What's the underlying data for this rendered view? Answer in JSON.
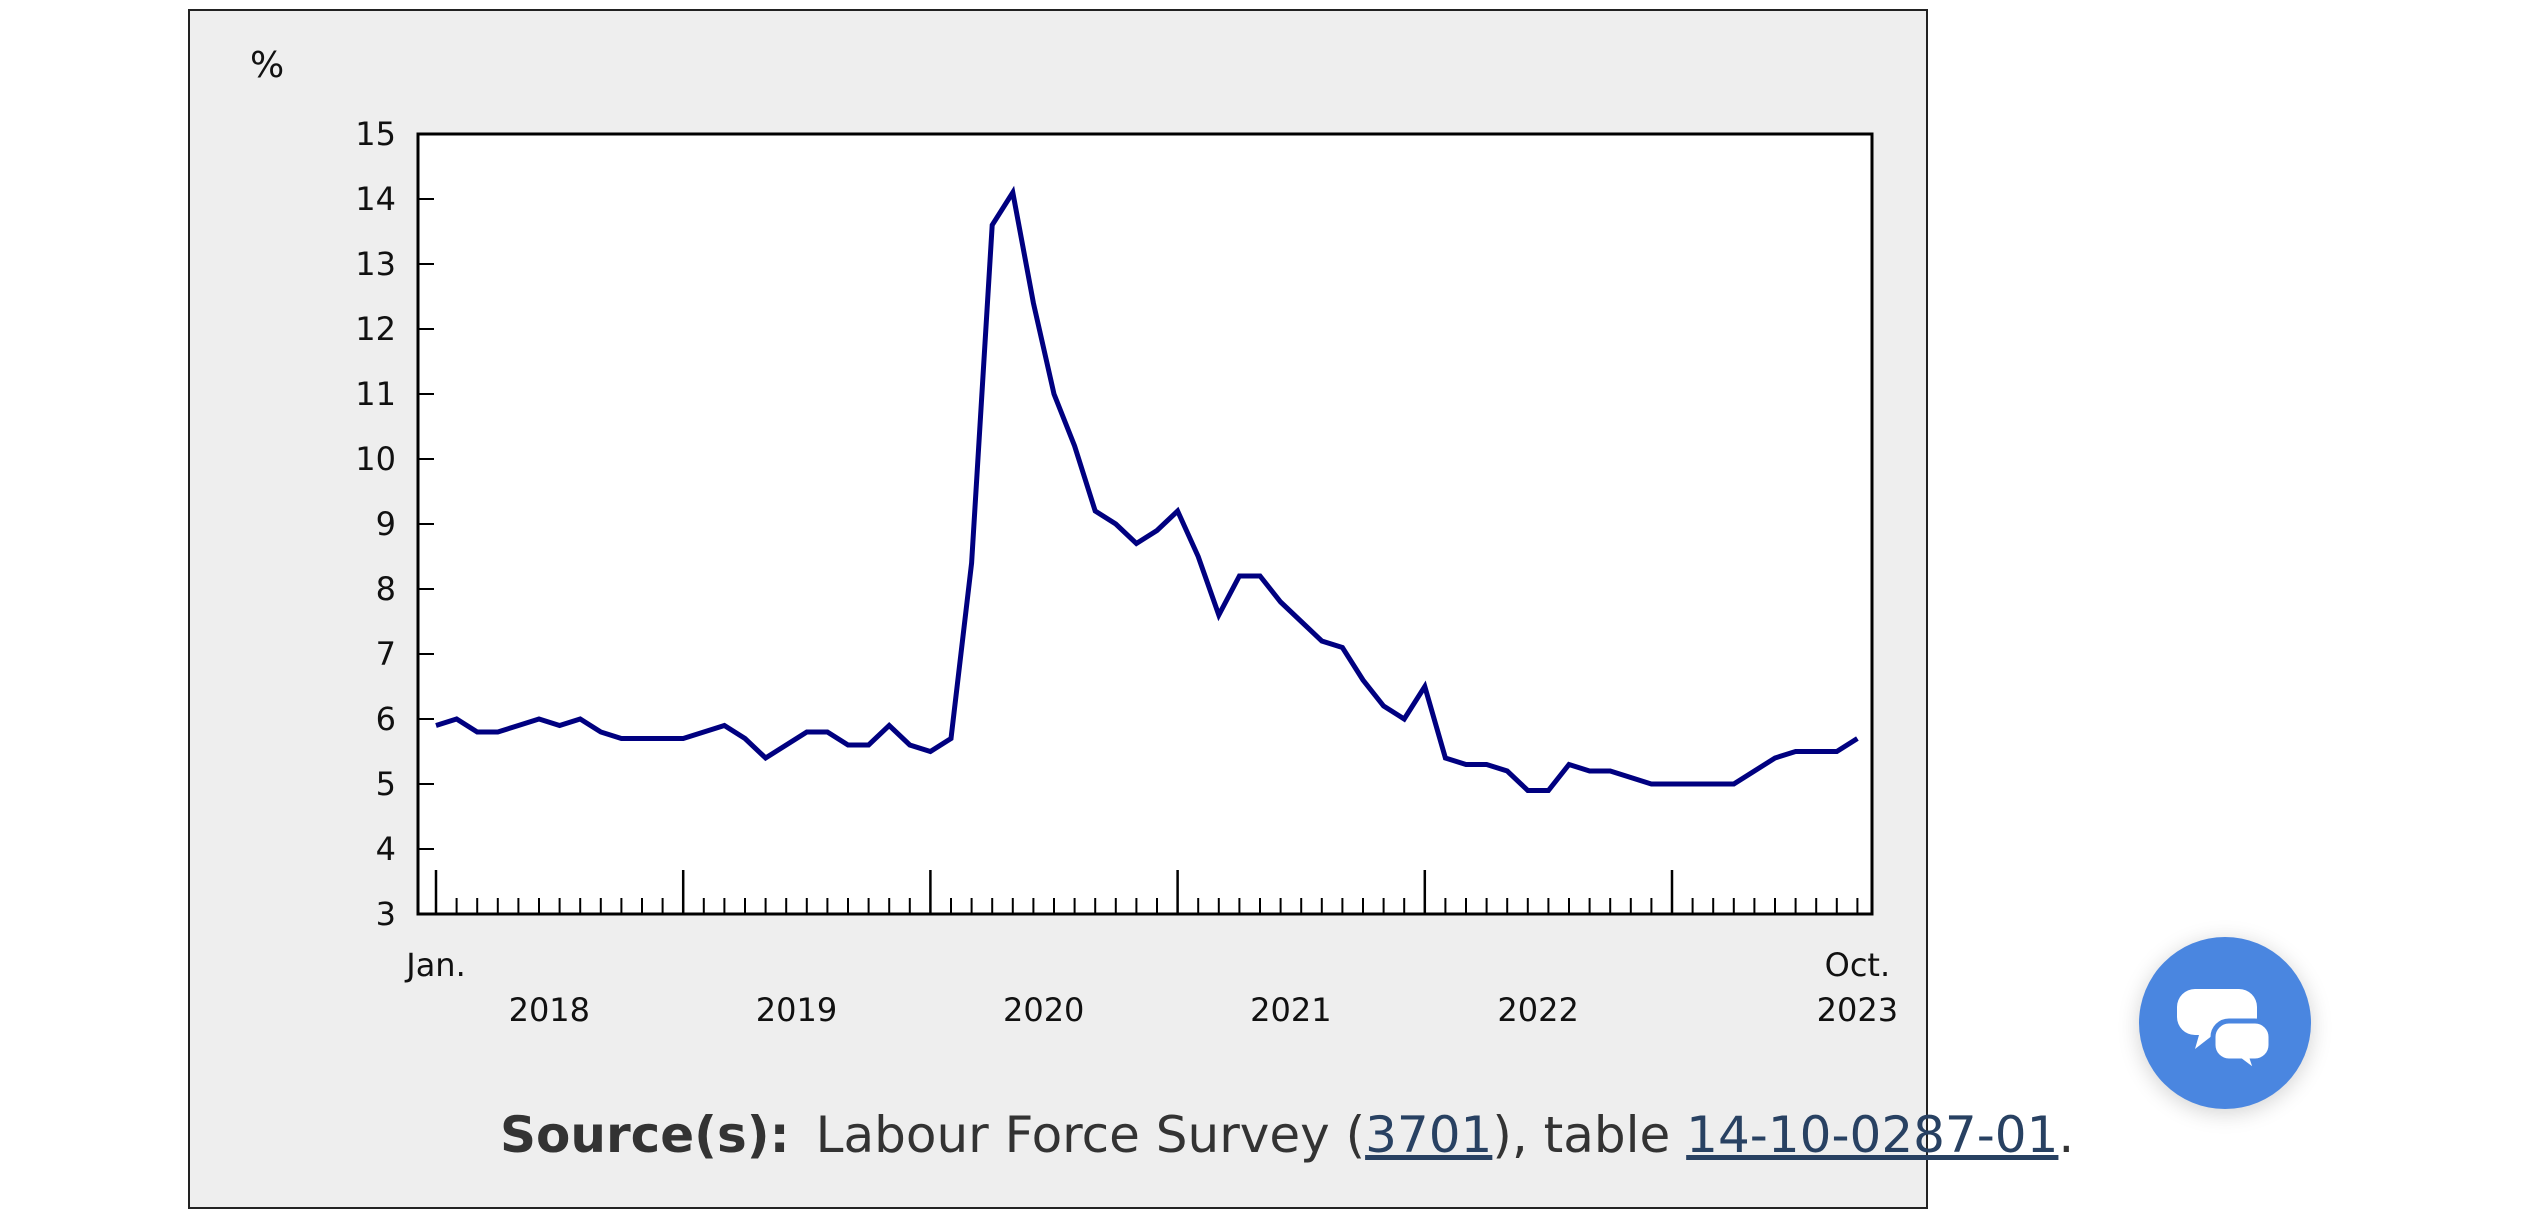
{
  "chart_data": {
    "type": "line",
    "unit_label": "%",
    "ylim": [
      3,
      15
    ],
    "y_ticks": [
      3,
      4,
      5,
      6,
      7,
      8,
      9,
      10,
      11,
      12,
      13,
      14,
      15
    ],
    "x_start_label": "Jan.",
    "x_end_label": "Oct.",
    "year_labels": [
      "2018",
      "2019",
      "2020",
      "2021",
      "2022",
      "2023"
    ],
    "series": [
      {
        "color": "#000080",
        "points": [
          {
            "x": "2018-01",
            "y": 5.9
          },
          {
            "x": "2018-02",
            "y": 6.0
          },
          {
            "x": "2018-03",
            "y": 5.8
          },
          {
            "x": "2018-04",
            "y": 5.8
          },
          {
            "x": "2018-05",
            "y": 5.9
          },
          {
            "x": "2018-06",
            "y": 6.0
          },
          {
            "x": "2018-07",
            "y": 5.9
          },
          {
            "x": "2018-08",
            "y": 6.0
          },
          {
            "x": "2018-09",
            "y": 5.8
          },
          {
            "x": "2018-10",
            "y": 5.7
          },
          {
            "x": "2018-11",
            "y": 5.7
          },
          {
            "x": "2018-12",
            "y": 5.7
          },
          {
            "x": "2019-01",
            "y": 5.7
          },
          {
            "x": "2019-02",
            "y": 5.8
          },
          {
            "x": "2019-03",
            "y": 5.9
          },
          {
            "x": "2019-04",
            "y": 5.7
          },
          {
            "x": "2019-05",
            "y": 5.4
          },
          {
            "x": "2019-06",
            "y": 5.6
          },
          {
            "x": "2019-07",
            "y": 5.8
          },
          {
            "x": "2019-08",
            "y": 5.8
          },
          {
            "x": "2019-09",
            "y": 5.6
          },
          {
            "x": "2019-10",
            "y": 5.6
          },
          {
            "x": "2019-11",
            "y": 5.9
          },
          {
            "x": "2019-12",
            "y": 5.6
          },
          {
            "x": "2020-01",
            "y": 5.5
          },
          {
            "x": "2020-02",
            "y": 5.7
          },
          {
            "x": "2020-03",
            "y": 8.4
          },
          {
            "x": "2020-04",
            "y": 13.6
          },
          {
            "x": "2020-05",
            "y": 14.1
          },
          {
            "x": "2020-06",
            "y": 12.4
          },
          {
            "x": "2020-07",
            "y": 11.0
          },
          {
            "x": "2020-08",
            "y": 10.2
          },
          {
            "x": "2020-09",
            "y": 9.2
          },
          {
            "x": "2020-10",
            "y": 9.0
          },
          {
            "x": "2020-11",
            "y": 8.7
          },
          {
            "x": "2020-12",
            "y": 8.9
          },
          {
            "x": "2021-01",
            "y": 9.2
          },
          {
            "x": "2021-02",
            "y": 8.5
          },
          {
            "x": "2021-03",
            "y": 7.6
          },
          {
            "x": "2021-04",
            "y": 8.2
          },
          {
            "x": "2021-05",
            "y": 8.2
          },
          {
            "x": "2021-06",
            "y": 7.8
          },
          {
            "x": "2021-07",
            "y": 7.5
          },
          {
            "x": "2021-08",
            "y": 7.2
          },
          {
            "x": "2021-09",
            "y": 7.1
          },
          {
            "x": "2021-10",
            "y": 6.6
          },
          {
            "x": "2021-11",
            "y": 6.2
          },
          {
            "x": "2021-12",
            "y": 6.0
          },
          {
            "x": "2022-01",
            "y": 6.5
          },
          {
            "x": "2022-02",
            "y": 5.4
          },
          {
            "x": "2022-03",
            "y": 5.3
          },
          {
            "x": "2022-04",
            "y": 5.3
          },
          {
            "x": "2022-05",
            "y": 5.2
          },
          {
            "x": "2022-06",
            "y": 4.9
          },
          {
            "x": "2022-07",
            "y": 4.9
          },
          {
            "x": "2022-08",
            "y": 5.3
          },
          {
            "x": "2022-09",
            "y": 5.2
          },
          {
            "x": "2022-10",
            "y": 5.2
          },
          {
            "x": "2022-11",
            "y": 5.1
          },
          {
            "x": "2022-12",
            "y": 5.0
          },
          {
            "x": "2023-01",
            "y": 5.0
          },
          {
            "x": "2023-02",
            "y": 5.0
          },
          {
            "x": "2023-03",
            "y": 5.0
          },
          {
            "x": "2023-04",
            "y": 5.0
          },
          {
            "x": "2023-05",
            "y": 5.2
          },
          {
            "x": "2023-06",
            "y": 5.4
          },
          {
            "x": "2023-07",
            "y": 5.5
          },
          {
            "x": "2023-08",
            "y": 5.5
          },
          {
            "x": "2023-09",
            "y": 5.5
          },
          {
            "x": "2023-10",
            "y": 5.7
          }
        ]
      }
    ],
    "grid": false,
    "legend": "none"
  },
  "source": {
    "label": "Source(s):",
    "text_before": "Labour Force Survey (",
    "survey_link": "3701",
    "text_middle": "), table ",
    "table_link": "14-10-0287-01",
    "text_after": "."
  },
  "chat_button": {
    "icon": "chat-bubbles-icon",
    "color": "#4a86e0"
  }
}
